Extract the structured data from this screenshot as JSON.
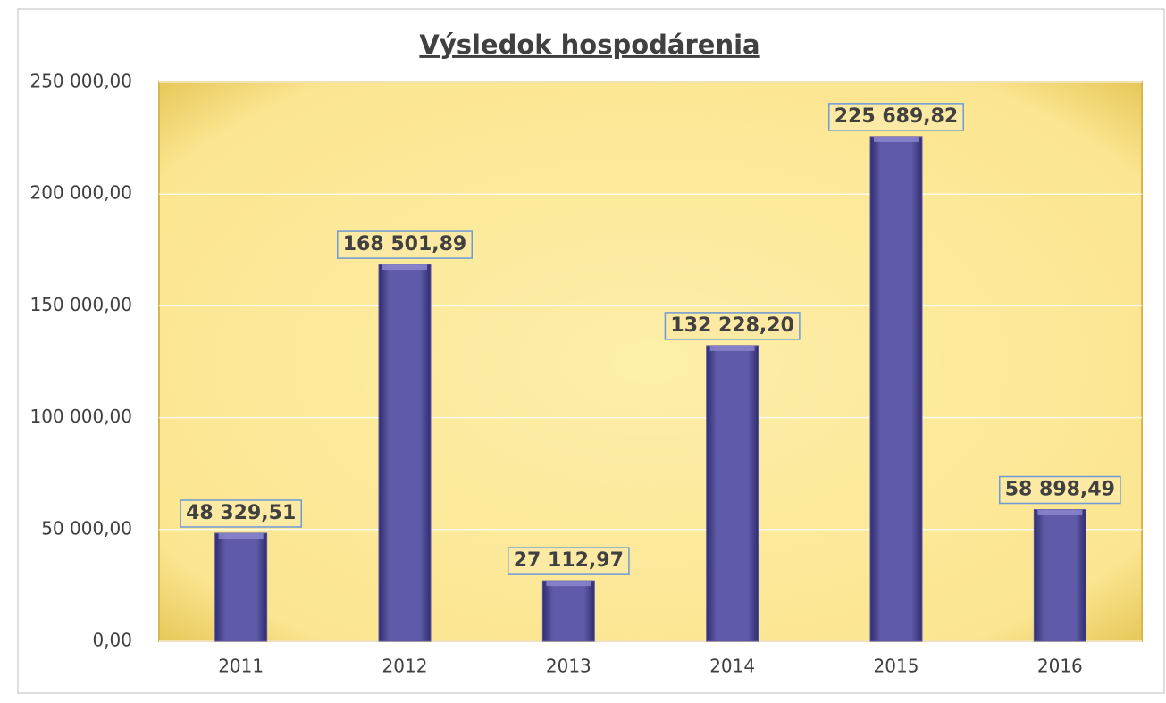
{
  "chart_data": {
    "type": "bar",
    "title": "Výsledok  hospodárenia",
    "categories": [
      "2011",
      "2012",
      "2013",
      "2014",
      "2015",
      "2016"
    ],
    "values": [
      48329.51,
      168501.89,
      27112.97,
      132228.2,
      225689.82,
      58898.49
    ],
    "value_labels": [
      "48 329,51",
      "168 501,89",
      "27 112,97",
      "132 228,20",
      "225 689,82",
      "58 898,49"
    ],
    "color": "#5a56a3",
    "ylim": [
      0,
      250000
    ],
    "yticks": [
      {
        "value": 0,
        "label": "0,00"
      },
      {
        "value": 50000,
        "label": "50 000,00"
      },
      {
        "value": 100000,
        "label": "100 000,00"
      },
      {
        "value": 150000,
        "label": "150 000,00"
      },
      {
        "value": 200000,
        "label": "200 000,00"
      },
      {
        "value": 250000,
        "label": "250 000,00"
      }
    ],
    "grid": true
  }
}
